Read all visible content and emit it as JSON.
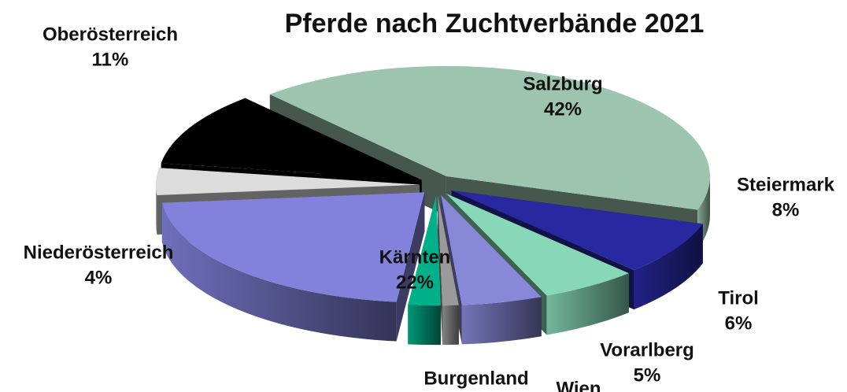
{
  "chart_data": {
    "type": "pie3d",
    "title": "Pferde nach Zuchtverbände 2021",
    "categories": [
      "Salzburg",
      "Steiermark",
      "Tirol",
      "Vorarlberg",
      "Wien",
      "Burgenland",
      "Kärnten",
      "Niederösterreich",
      "Oberösterreich"
    ],
    "values": [
      42,
      8,
      6,
      5,
      1,
      2,
      22,
      4,
      11
    ],
    "value_labels": [
      "42%",
      "8%",
      "6%",
      "5%",
      null,
      null,
      "22%",
      "4%",
      "11%"
    ],
    "colors": [
      "#9cc4ae",
      "#2828a0",
      "#88d8b8",
      "#8888d8",
      "#9a9a9a",
      "#00b08a",
      "#8282dc",
      "#dcdcdc",
      "#000000"
    ]
  }
}
